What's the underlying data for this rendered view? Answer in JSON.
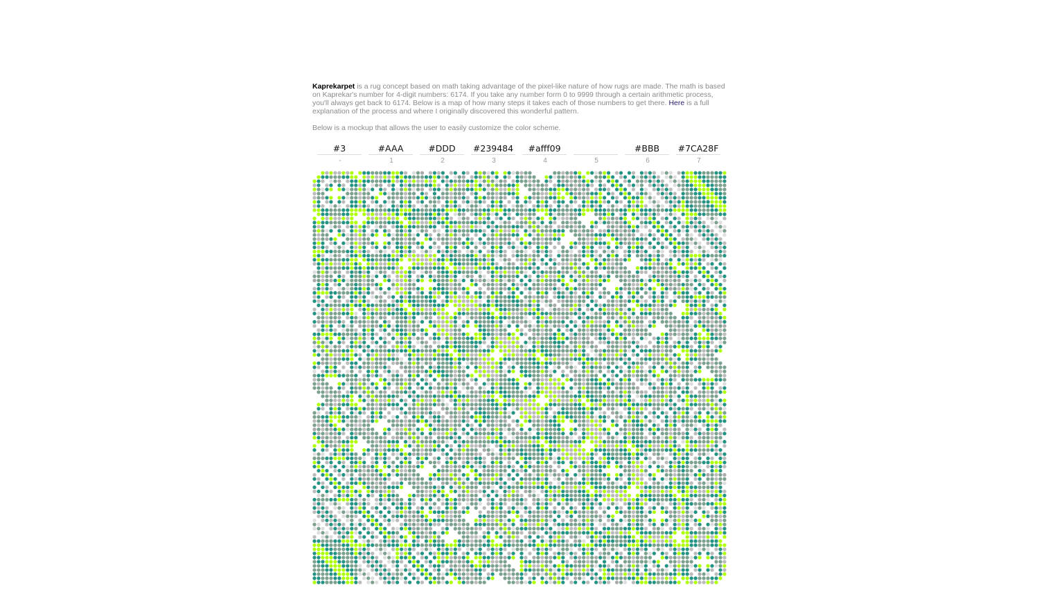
{
  "intro": {
    "brand": "Kaprekarpet",
    "text_before_link": " is a rug concept based on math taking advantage of the pixel-like nature of how rugs are made. The math is based on Kaprekar's number for 4-digit numbers: 6174. If you take any number form 0 to 9999 through a certain arithmetic process, you'll always get back to 6174. Below is a map of how many steps it takes each of those numbers to get there. ",
    "link_text": "Here",
    "text_after_link": " is a full explanation of the process and where I originally discovered this wonderful pattern."
  },
  "mockup_note": "Below is a mockup that allows the user to easily customize the color scheme.",
  "swatches": [
    {
      "value": "#3",
      "index_label": "-"
    },
    {
      "value": "#AAA",
      "index_label": "1"
    },
    {
      "value": "#DDD",
      "index_label": "2"
    },
    {
      "value": "#239484",
      "index_label": "3"
    },
    {
      "value": "#afff09",
      "index_label": "4"
    },
    {
      "value": "",
      "index_label": "5"
    },
    {
      "value": "#BBB",
      "index_label": "6"
    },
    {
      "value": "#7CA28F",
      "index_label": "7"
    }
  ],
  "rug": {
    "grid_size": 100,
    "step_colors": [
      "#3",
      "#AAA",
      "#DDD",
      "#239484",
      "#afff09",
      "",
      "#BBB",
      "#7CA28F"
    ]
  }
}
